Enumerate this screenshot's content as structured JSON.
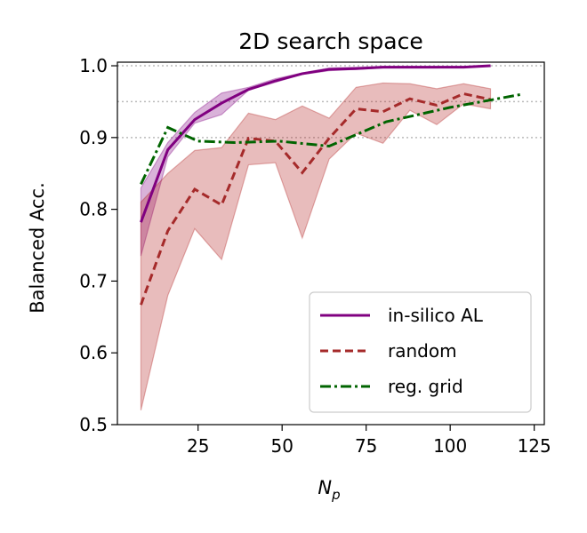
{
  "chart_data": {
    "type": "line",
    "title": "2D search space",
    "xlabel_main": "N",
    "xlabel_sub": "p",
    "ylabel": "Balanced Acc.",
    "xlim": [
      1,
      128
    ],
    "ylim": [
      0.5,
      1.005
    ],
    "x_ticks": [
      25,
      50,
      75,
      100,
      125
    ],
    "y_ticks": [
      0.5,
      0.6,
      0.7,
      0.8,
      0.9,
      1.0
    ],
    "x_tick_labels": [
      "25",
      "50",
      "75",
      "100",
      "125"
    ],
    "y_tick_labels": [
      "0.5",
      "0.6",
      "0.7",
      "0.8",
      "0.9",
      "1.0"
    ],
    "reference_lines": [
      1.0,
      0.95,
      0.9
    ],
    "grid": false,
    "legend_position": "lower-right",
    "series": [
      {
        "name": "in-silico AL",
        "color": "#800080",
        "style": "solid",
        "band_color": "#800080",
        "x": [
          8,
          16,
          24,
          32,
          40,
          48,
          56,
          64,
          72,
          80,
          88,
          96,
          104,
          112
        ],
        "values": [
          0.782,
          0.883,
          0.925,
          0.948,
          0.967,
          0.979,
          0.989,
          0.995,
          0.996,
          0.998,
          0.998,
          0.998,
          0.998,
          1.0
        ],
        "lower": [
          0.735,
          0.873,
          0.92,
          0.932,
          0.966,
          0.977,
          0.988,
          0.993,
          0.995,
          0.997,
          0.997,
          0.997,
          0.998,
          0.999
        ],
        "upper": [
          0.83,
          0.893,
          0.935,
          0.962,
          0.97,
          0.982,
          0.99,
          0.997,
          0.998,
          0.999,
          0.999,
          0.999,
          0.999,
          1.0
        ]
      },
      {
        "name": "random",
        "color": "#a52a2a",
        "style": "dashed",
        "band_color": "#b22222",
        "x": [
          8,
          16,
          24,
          32,
          40,
          48,
          56,
          64,
          72,
          80,
          88,
          96,
          104,
          112
        ],
        "values": [
          0.667,
          0.77,
          0.828,
          0.806,
          0.899,
          0.895,
          0.851,
          0.899,
          0.94,
          0.936,
          0.954,
          0.945,
          0.961,
          0.953
        ],
        "lower": [
          0.52,
          0.68,
          0.773,
          0.73,
          0.862,
          0.865,
          0.76,
          0.87,
          0.906,
          0.892,
          0.938,
          0.918,
          0.947,
          0.94
        ],
        "upper": [
          0.81,
          0.85,
          0.882,
          0.886,
          0.934,
          0.925,
          0.944,
          0.927,
          0.97,
          0.976,
          0.975,
          0.968,
          0.975,
          0.968
        ]
      },
      {
        "name": "reg. grid",
        "color": "#006400",
        "style": "dashdot",
        "x": [
          8,
          16,
          25,
          36,
          49,
          64,
          81,
          100,
          121
        ],
        "values": [
          0.835,
          0.914,
          0.895,
          0.893,
          0.895,
          0.888,
          0.922,
          0.942,
          0.96
        ]
      }
    ]
  }
}
